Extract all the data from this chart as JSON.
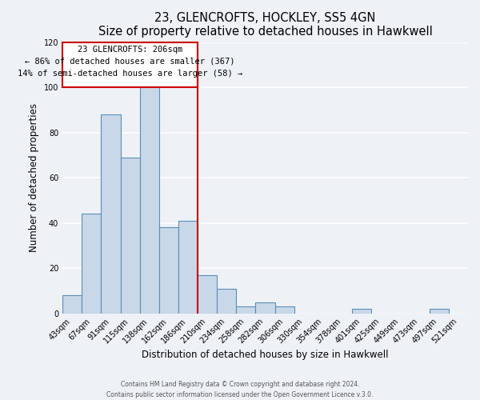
{
  "title": "23, GLENCROFTS, HOCKLEY, SS5 4GN",
  "subtitle": "Size of property relative to detached houses in Hawkwell",
  "xlabel": "Distribution of detached houses by size in Hawkwell",
  "ylabel": "Number of detached properties",
  "bar_labels": [
    "43sqm",
    "67sqm",
    "91sqm",
    "115sqm",
    "138sqm",
    "162sqm",
    "186sqm",
    "210sqm",
    "234sqm",
    "258sqm",
    "282sqm",
    "306sqm",
    "330sqm",
    "354sqm",
    "378sqm",
    "401sqm",
    "425sqm",
    "449sqm",
    "473sqm",
    "497sqm",
    "521sqm"
  ],
  "bar_values": [
    8,
    44,
    88,
    69,
    101,
    38,
    41,
    17,
    11,
    3,
    5,
    3,
    0,
    0,
    0,
    2,
    0,
    0,
    0,
    2,
    0
  ],
  "bar_color": "#c8d8e8",
  "bar_edge_color": "#5b8db8",
  "annotation_title": "23 GLENCROFTS: 206sqm",
  "annotation_line1": "← 86% of detached houses are smaller (367)",
  "annotation_line2": "14% of semi-detached houses are larger (58) →",
  "box_edge_color": "#cc0000",
  "vline_color": "#cc0000",
  "ylim": [
    0,
    120
  ],
  "yticks": [
    0,
    20,
    40,
    60,
    80,
    100,
    120
  ],
  "footer1": "Contains HM Land Registry data © Crown copyright and database right 2024.",
  "footer2": "Contains public sector information licensed under the Open Government Licence v.3.0.",
  "bg_color": "#eef2f7",
  "grid_color": "#ffffff",
  "ref_bar_index": 7
}
